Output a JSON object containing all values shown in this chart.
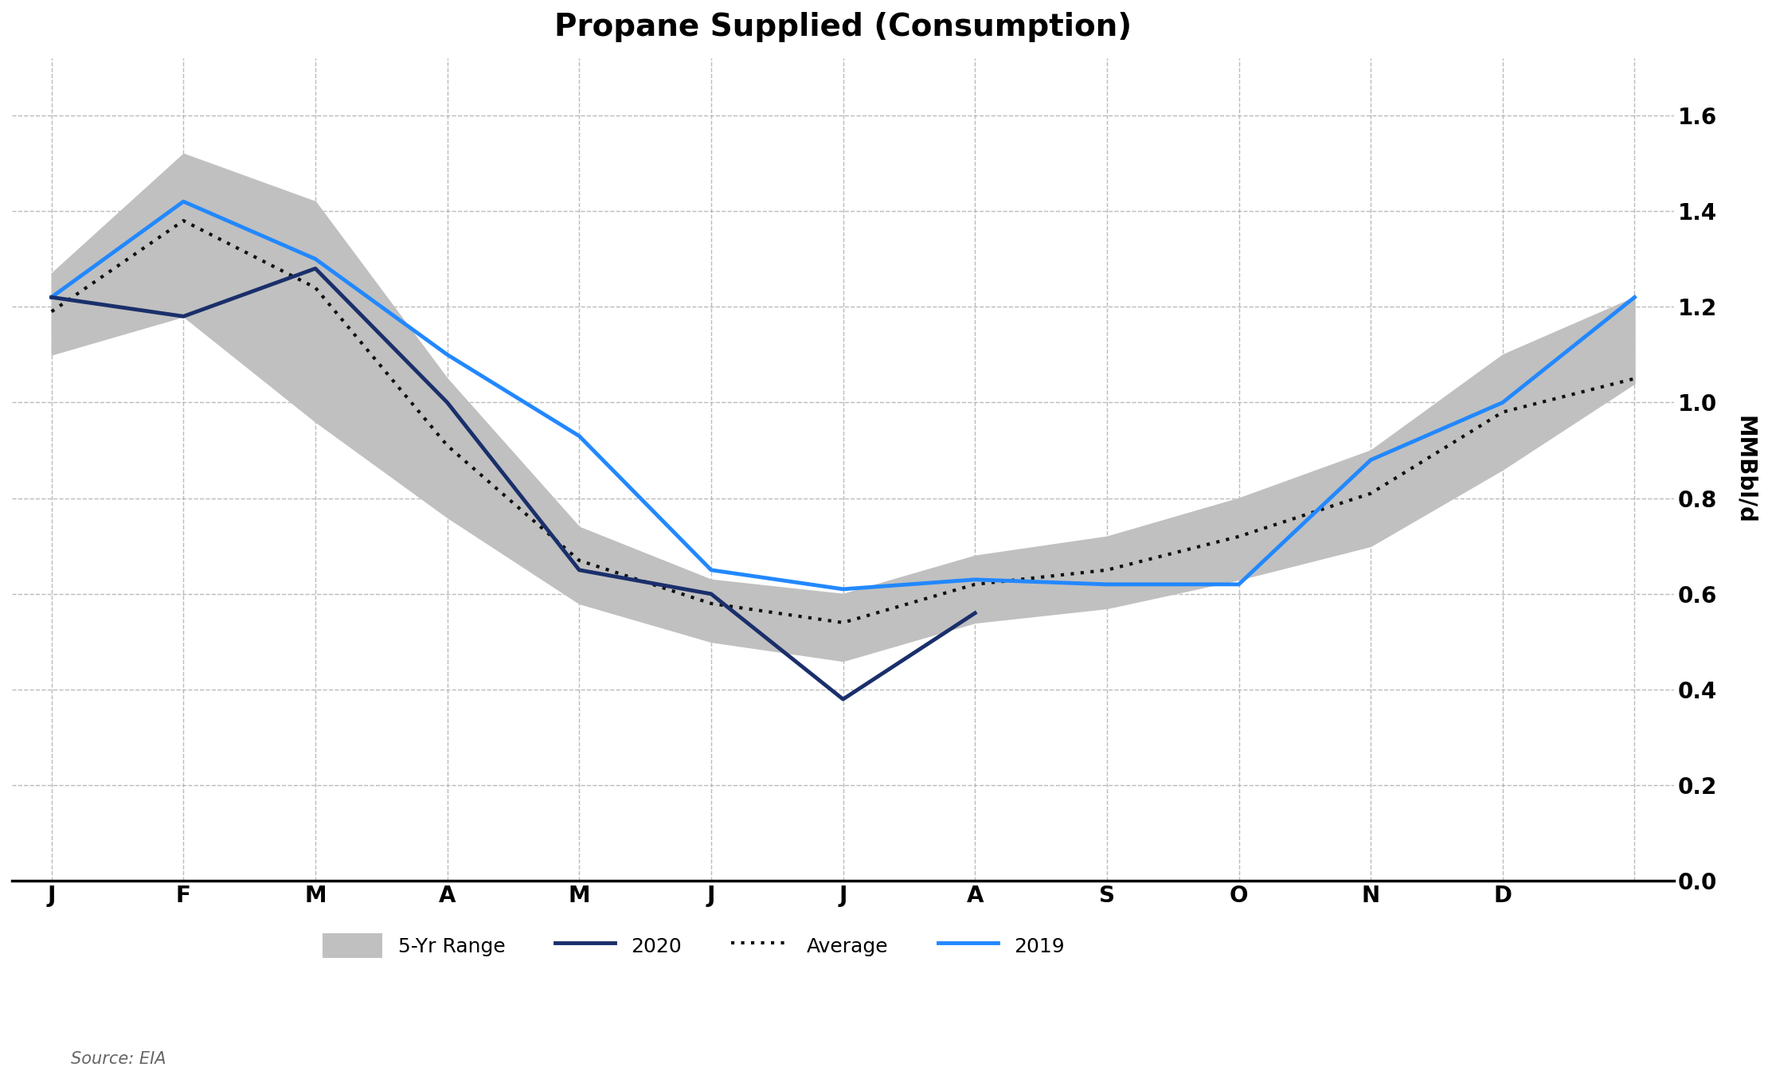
{
  "title": "Propane Supplied (Consumption)",
  "ylabel": "MMBbl/d",
  "x_labels": [
    "J",
    "F",
    "M",
    "A",
    "M",
    "J",
    "J",
    "A",
    "S",
    "O",
    "N",
    "D",
    ""
  ],
  "x_values": [
    0,
    1,
    2,
    3,
    4,
    5,
    6,
    7,
    8,
    9,
    10,
    11,
    12
  ],
  "ylim": [
    0.0,
    1.72
  ],
  "yticks": [
    0.0,
    0.2,
    0.4,
    0.6,
    0.8,
    1.0,
    1.2,
    1.4,
    1.6
  ],
  "range_high": [
    1.27,
    1.52,
    1.42,
    1.05,
    0.74,
    0.63,
    0.6,
    0.68,
    0.72,
    0.8,
    0.9,
    1.1,
    1.22
  ],
  "range_low": [
    1.1,
    1.18,
    0.96,
    0.76,
    0.58,
    0.5,
    0.46,
    0.54,
    0.57,
    0.63,
    0.7,
    0.86,
    1.04
  ],
  "average": [
    1.19,
    1.38,
    1.24,
    0.91,
    0.67,
    0.58,
    0.54,
    0.62,
    0.65,
    0.72,
    0.81,
    0.98,
    1.05
  ],
  "line_2020": [
    1.22,
    1.18,
    1.28,
    1.0,
    0.65,
    0.6,
    0.38,
    0.56,
    null,
    null,
    null,
    null,
    null
  ],
  "line_2019": [
    1.22,
    1.42,
    1.3,
    1.1,
    0.93,
    0.65,
    0.61,
    0.63,
    0.62,
    0.62,
    0.88,
    1.0,
    1.22
  ],
  "color_2020": "#1a2f6b",
  "color_2019": "#2288ff",
  "color_range": "#c0c0c0",
  "color_average": "#111111",
  "background_color": "#ffffff",
  "grid_color": "#aaaaaa",
  "source_text": "Source: EIA",
  "title_fontsize": 28,
  "label_fontsize": 20,
  "tick_fontsize": 20,
  "legend_fontsize": 18,
  "lw_2020": 3.5,
  "lw_2019": 3.5,
  "lw_average": 3.0
}
